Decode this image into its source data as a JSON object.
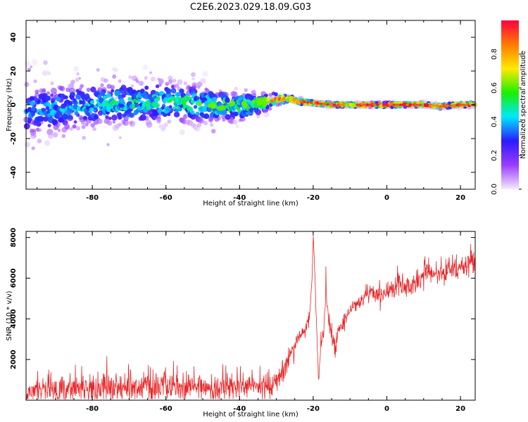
{
  "title": "C2E6.2023.029.18.09.G03",
  "chart_data": [
    {
      "type": "heatmap",
      "name": "spectrogram",
      "xlabel": "Height of straight line (km)",
      "ylabel": "Frequency (Hz)",
      "xlim": [
        -98,
        24
      ],
      "ylim": [
        -50,
        50
      ],
      "xticks": [
        -80,
        -60,
        -40,
        -20,
        0,
        20
      ],
      "yticks": [
        -40,
        -20,
        0,
        20,
        40
      ],
      "colorbar": {
        "label": "Normalized spectral amplitude",
        "range": [
          0,
          1
        ],
        "ticks": [
          "0.0",
          "0.2",
          "0.4",
          "0.6",
          "0.8"
        ],
        "colors": [
          "#f4eaff",
          "#9a3cff",
          "#2b1bff",
          "#00e8ff",
          "#19f000",
          "#ffea00",
          "#ff7a00",
          "#ff0040"
        ]
      },
      "band": {
        "comment_free": true,
        "x": [
          -98,
          -90,
          -80,
          -70,
          -60,
          -50,
          -40,
          -35,
          -30,
          -27,
          -24,
          -20,
          -15,
          -10,
          -5,
          0,
          5,
          10,
          15,
          20,
          24
        ],
        "center": [
          -3,
          -2,
          0,
          1,
          2,
          0,
          -1,
          1,
          3,
          4,
          2,
          1,
          0,
          0,
          0,
          0,
          0,
          0,
          -1,
          0,
          0
        ],
        "spread": [
          18,
          15,
          14,
          13,
          12,
          11,
          8,
          6,
          4,
          3,
          2,
          1.5,
          1.5,
          1.5,
          1.5,
          1.5,
          1.5,
          1.5,
          1.5,
          1.5,
          1.5
        ],
        "peak_amplitude": [
          0.35,
          0.4,
          0.45,
          0.5,
          0.5,
          0.55,
          0.6,
          0.65,
          0.8,
          0.9,
          0.95,
          0.98,
          0.98,
          1.0,
          1.0,
          1.0,
          1.0,
          1.0,
          0.95,
          1.0,
          1.0
        ]
      }
    },
    {
      "type": "line",
      "name": "snr",
      "xlabel": "Height of straight line (km)",
      "ylabel": "SNR (10 * v/v)",
      "xlim": [
        -98,
        24
      ],
      "ylim": [
        0,
        8300
      ],
      "xticks": [
        -80,
        -60,
        -40,
        -20,
        0,
        20
      ],
      "yticks": [
        2000,
        4000,
        6000,
        8000
      ],
      "color": "#e8292b",
      "series": [
        {
          "x": [
            -98,
            -95,
            -90,
            -88,
            -85,
            -80,
            -75,
            -70,
            -65,
            -60,
            -55,
            -50,
            -45,
            -40,
            -35,
            -32,
            -30,
            -28,
            -26,
            -24,
            -22,
            -21,
            -20.3,
            -20,
            -19.5,
            -19,
            -18.5,
            -18,
            -17,
            -16.5,
            -16,
            -15,
            -14,
            -13,
            -12,
            -11,
            -10,
            -8,
            -6,
            -4,
            -2,
            0,
            2,
            4,
            6,
            8,
            10,
            11,
            12,
            14,
            16,
            17,
            18,
            20,
            22,
            24
          ],
          "center": [
            400,
            500,
            500,
            600,
            650,
            650,
            650,
            650,
            650,
            650,
            650,
            650,
            650,
            650,
            700,
            750,
            900,
            1400,
            2300,
            3000,
            3500,
            4200,
            6000,
            8200,
            6000,
            3000,
            900,
            2600,
            3700,
            5800,
            4200,
            3200,
            2600,
            3400,
            3800,
            4100,
            4500,
            4800,
            5100,
            5300,
            5100,
            5400,
            5500,
            5600,
            5600,
            5800,
            6000,
            6400,
            6200,
            6200,
            6300,
            6500,
            6400,
            6500,
            6600,
            6800
          ],
          "noise": [
            500,
            500,
            550,
            700,
            750,
            750,
            750,
            750,
            700,
            700,
            650,
            650,
            650,
            650,
            600,
            550,
            500,
            500,
            450,
            450,
            400,
            400,
            0,
            0,
            0,
            600,
            0,
            500,
            500,
            700,
            500,
            450,
            450,
            400,
            400,
            400,
            400,
            400,
            450,
            450,
            450,
            450,
            450,
            500,
            500,
            550,
            600,
            1000,
            500,
            500,
            550,
            800,
            500,
            500,
            500,
            500
          ]
        }
      ]
    }
  ]
}
